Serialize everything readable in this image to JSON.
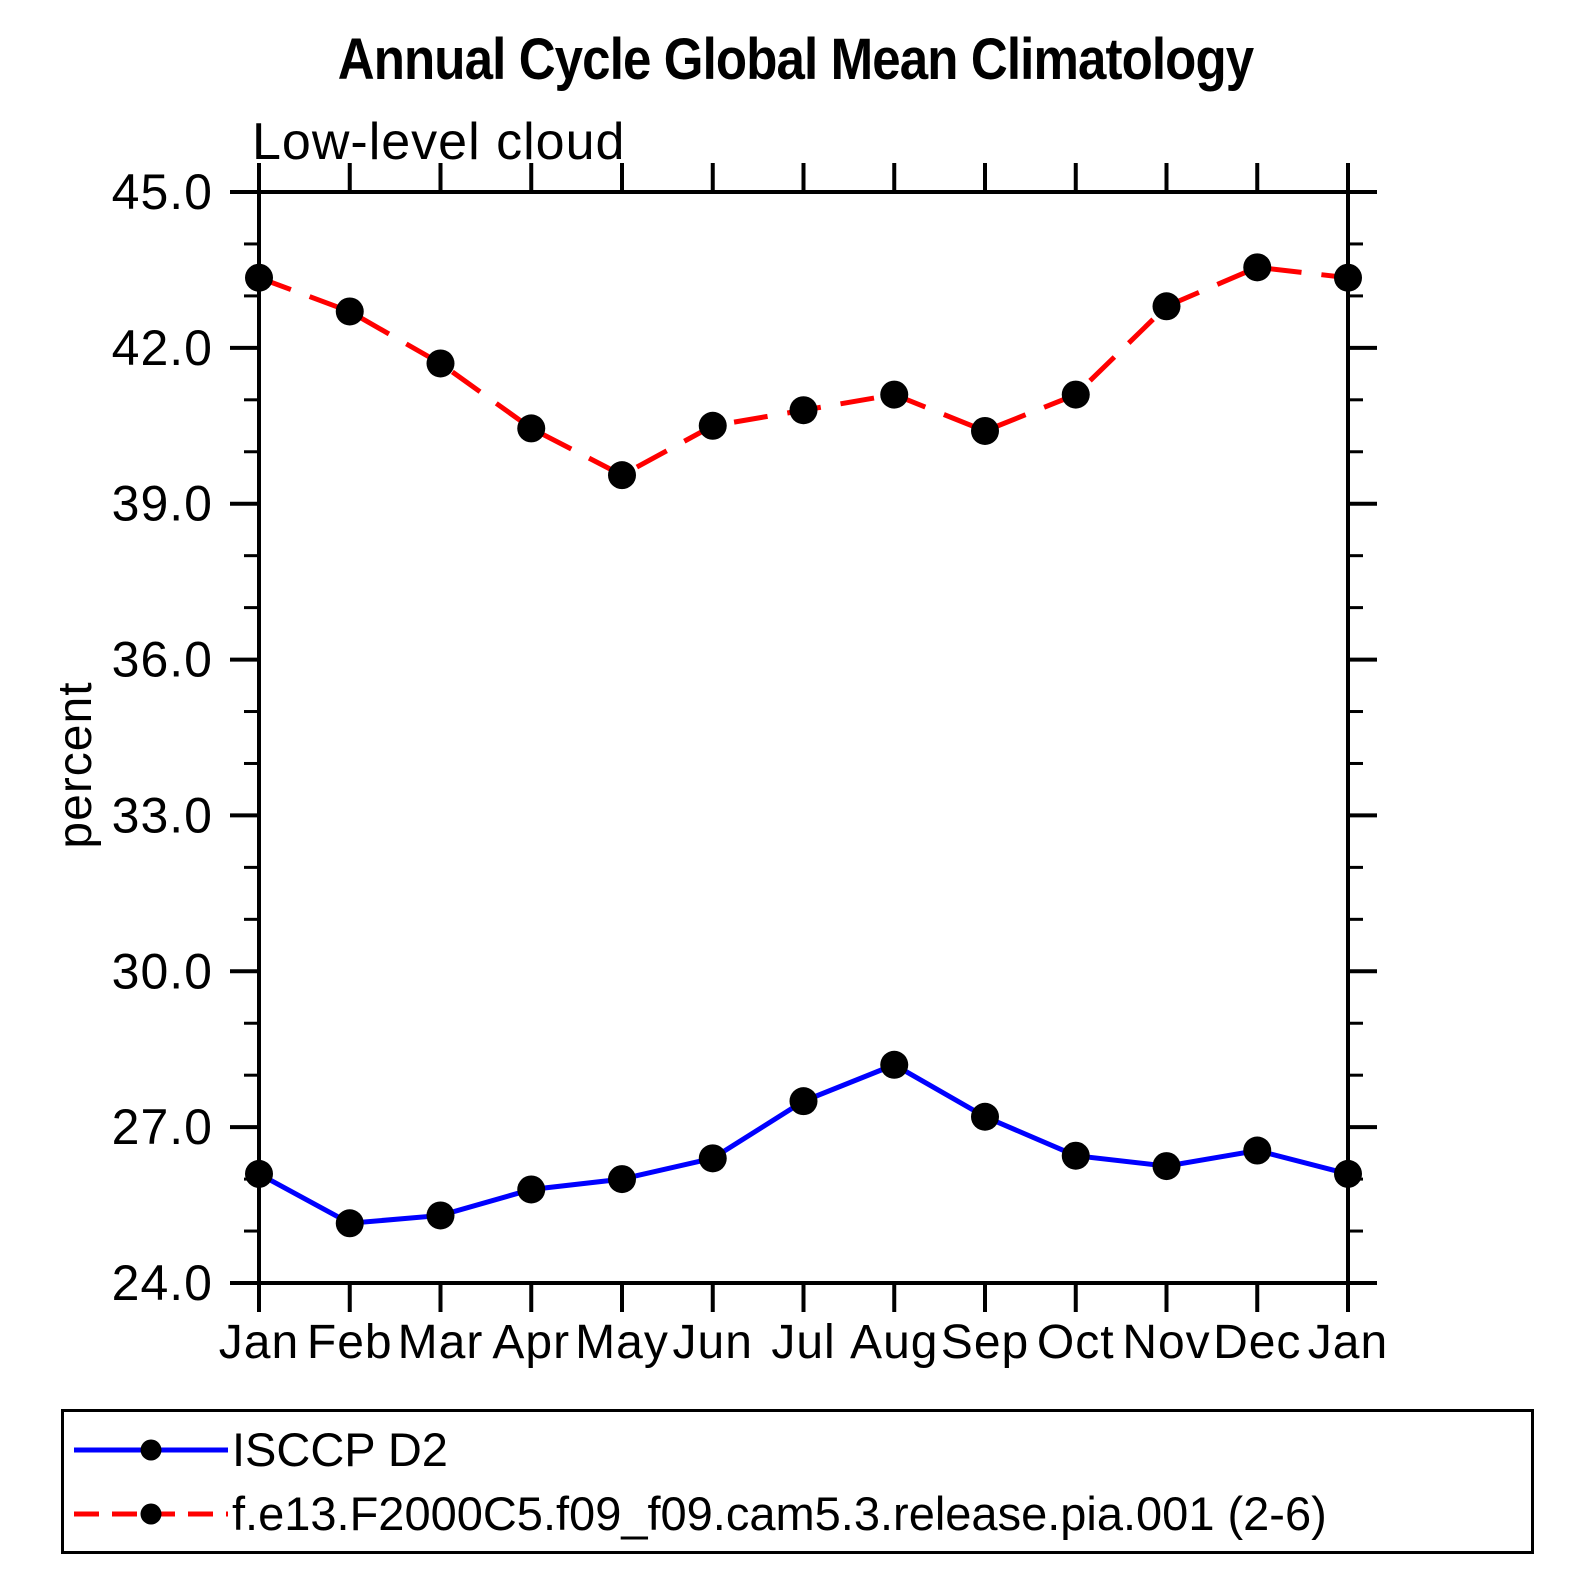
{
  "chart_data": {
    "type": "line",
    "title": "Annual Cycle Global Mean Climatology",
    "subtitle": "Low-level cloud",
    "ylabel": "percent",
    "xlabel": "",
    "categories": [
      "Jan",
      "Feb",
      "Mar",
      "Apr",
      "May",
      "Jun",
      "Jul",
      "Aug",
      "Sep",
      "Oct",
      "Nov",
      "Dec",
      "Jan"
    ],
    "ylim": [
      24.0,
      45.0
    ],
    "ytick_major_step": 3.0,
    "ytick_minor_step": 1.0,
    "ytick_labels": [
      "24.0",
      "27.0",
      "30.0",
      "33.0",
      "36.0",
      "39.0",
      "42.0",
      "45.0"
    ],
    "grid": false,
    "legend_position": "bottom-box",
    "axis_color": "#000000",
    "series": [
      {
        "name": "ISCCP D2",
        "color": "#0000ff",
        "line_style": "solid",
        "marker": "filled-circle",
        "marker_color": "#000000",
        "values": [
          26.1,
          25.15,
          25.3,
          25.8,
          26.0,
          26.4,
          27.5,
          28.2,
          27.2,
          26.45,
          26.25,
          26.55,
          26.1
        ]
      },
      {
        "name": "f.e13.F2000C5.f09_f09.cam5.3.release.pia.001 (2-6)",
        "color": "#ff0000",
        "line_style": "dashed",
        "marker": "filled-circle",
        "marker_color": "#000000",
        "values": [
          43.35,
          42.7,
          41.7,
          40.45,
          39.55,
          40.5,
          40.8,
          41.1,
          40.4,
          41.1,
          42.8,
          43.55,
          43.35
        ]
      }
    ]
  }
}
